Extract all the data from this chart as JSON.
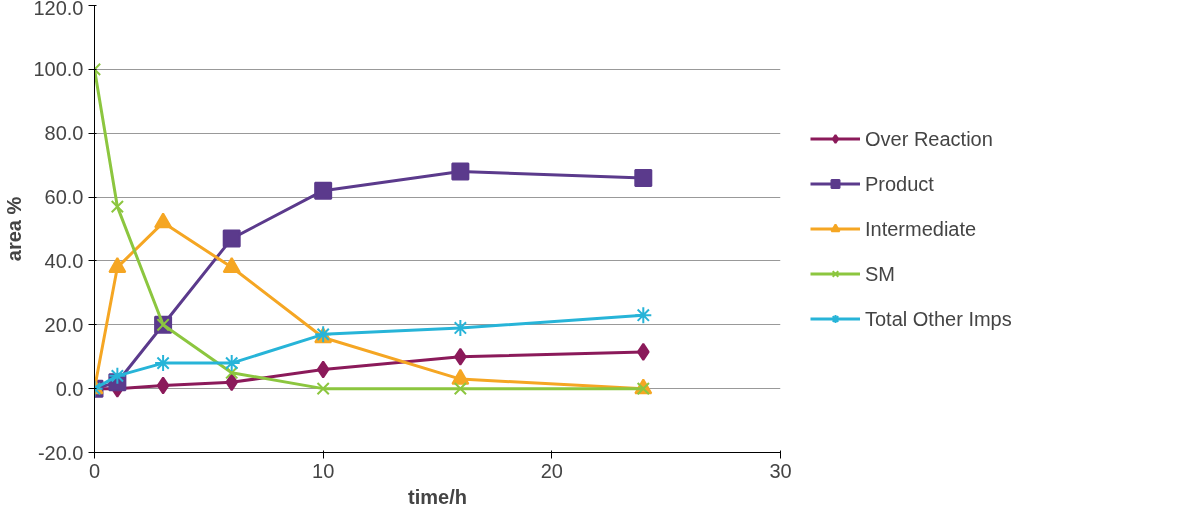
{
  "chart_data": {
    "type": "line",
    "xlabel": "time/h",
    "ylabel": "area %",
    "x": [
      0,
      1,
      3,
      6,
      10,
      16,
      24
    ],
    "series": [
      {
        "name": "Over Reaction",
        "color": "#8b1a5a",
        "marker": "diamond",
        "values": [
          0,
          0,
          1,
          2,
          6,
          10,
          11.5
        ]
      },
      {
        "name": "Product",
        "color": "#5b3a8c",
        "marker": "square",
        "values": [
          0,
          2,
          20,
          47,
          62,
          68,
          66
        ]
      },
      {
        "name": "Intermediate",
        "color": "#f5a623",
        "marker": "triangle",
        "values": [
          0,
          38,
          52,
          38,
          16,
          3,
          0
        ]
      },
      {
        "name": "SM",
        "color": "#8cc63f",
        "marker": "x",
        "values": [
          100,
          57,
          20,
          5,
          0,
          0,
          0
        ]
      },
      {
        "name": "Total Other Imps",
        "color": "#27b4d8",
        "marker": "cross",
        "values": [
          0,
          4,
          8,
          8,
          17,
          19,
          23
        ]
      }
    ],
    "xlim": [
      0,
      30
    ],
    "xticks": [
      0,
      10,
      20,
      30
    ],
    "ylim": [
      -20,
      120
    ],
    "yticks": [
      {
        "value": -20,
        "label": "-20.0"
      },
      {
        "value": 0,
        "label": "0.0"
      },
      {
        "value": 20,
        "label": "20.0"
      },
      {
        "value": 40,
        "label": "40.0"
      },
      {
        "value": 60,
        "label": "60.0"
      },
      {
        "value": 80,
        "label": "80.0"
      },
      {
        "value": 100,
        "label": "100.0"
      },
      {
        "value": 120,
        "label": "120.0"
      }
    ],
    "grid": "y",
    "legend": "right"
  }
}
